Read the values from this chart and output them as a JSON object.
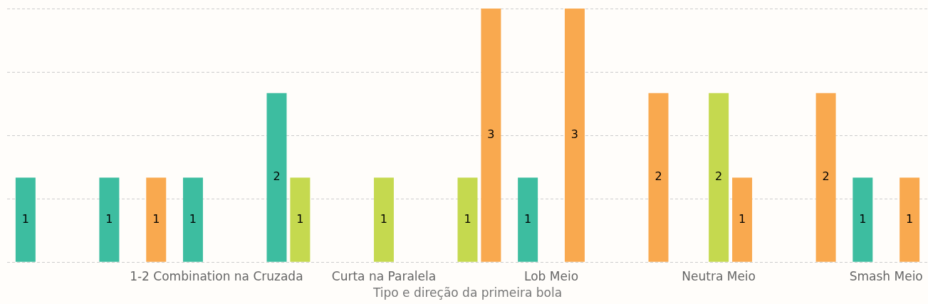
{
  "chart_data": {
    "type": "bar",
    "xlabel": "Tipo e direção da primeira bola",
    "categories": [
      null,
      null,
      "1-2 Combination na Cruzada",
      null,
      "Curta na Paralela",
      null,
      "Lob Meio",
      null,
      "Neutra Meio",
      null,
      "Smash Meio"
    ],
    "series": [
      {
        "color": "#3dbda0",
        "values": [
          1,
          1,
          1,
          2,
          null,
          null,
          1,
          null,
          null,
          null,
          1
        ]
      },
      {
        "color": "#c5d94f",
        "values": [
          null,
          null,
          null,
          1,
          1,
          1,
          null,
          null,
          2,
          null,
          null
        ]
      },
      {
        "color": "#f9a94f",
        "values": [
          null,
          1,
          null,
          null,
          null,
          3,
          3,
          2,
          1,
          2,
          1
        ]
      }
    ],
    "ylim": [
      0,
      3
    ],
    "yticks": [
      {
        "value": 0,
        "label": null
      },
      {
        "value": 0.75,
        "label": null
      },
      {
        "value": 1.5,
        "label": null
      },
      {
        "value": 2.25,
        "label": null
      },
      {
        "value": 3,
        "label": null
      }
    ],
    "tick_labels": "x",
    "grid": "y",
    "legend": false,
    "data_labels": true
  }
}
